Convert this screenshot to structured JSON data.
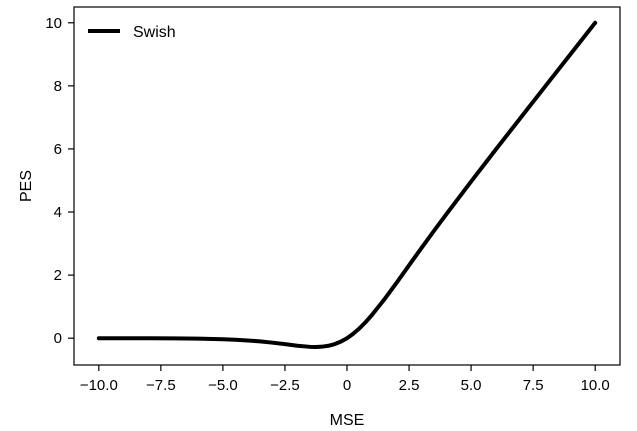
{
  "chart_data": {
    "type": "line",
    "title": "",
    "xlabel": "MSE",
    "ylabel": "PES",
    "xlim": [
      -11.0,
      11.0
    ],
    "ylim": [
      -0.85,
      10.5
    ],
    "xticks": [
      -10.0,
      -7.5,
      -5.0,
      -2.5,
      0.0,
      2.5,
      5.0,
      7.5,
      10.0
    ],
    "xtick_labels": [
      "−10.0",
      "−7.5",
      "−5.0",
      "−2.5",
      "0",
      "2.5",
      "5.0",
      "7.5",
      "10.0"
    ],
    "yticks": [
      0,
      2,
      4,
      6,
      8,
      10
    ],
    "ytick_labels": [
      "0",
      "2",
      "4",
      "6",
      "8",
      "10"
    ],
    "grid": false,
    "legend": {
      "position": "top-left",
      "entries": [
        "Swish"
      ]
    },
    "series": [
      {
        "name": "Swish",
        "color": "#000000",
        "x": [
          -10,
          -9,
          -8,
          -7,
          -6,
          -5,
          -4.5,
          -4,
          -3.5,
          -3,
          -2.5,
          -2,
          -1.5,
          -1.25,
          -1,
          -0.75,
          -0.5,
          -0.25,
          0,
          0.25,
          0.5,
          0.75,
          1,
          1.5,
          2,
          2.5,
          3,
          3.5,
          4,
          5,
          6,
          7,
          8,
          9,
          10
        ],
        "y": [
          -0.0005,
          -0.0011,
          -0.0027,
          -0.0064,
          -0.0148,
          -0.0335,
          -0.0497,
          -0.0719,
          -0.1017,
          -0.1423,
          -0.1888,
          -0.2384,
          -0.2736,
          -0.2783,
          -0.2689,
          -0.2407,
          -0.1888,
          -0.1094,
          0.0,
          0.1406,
          0.3112,
          0.5093,
          0.7311,
          1.2264,
          1.7616,
          2.3112,
          2.8577,
          3.3983,
          3.9281,
          4.9665,
          5.9852,
          6.9936,
          7.9973,
          8.9989,
          9.9995
        ]
      }
    ]
  }
}
